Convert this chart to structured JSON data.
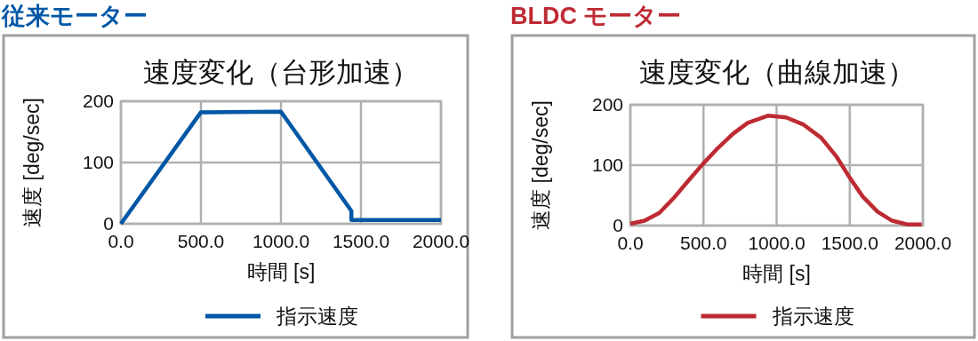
{
  "chart_data": [
    {
      "type": "line",
      "title": "従来モーター",
      "subtitle": "速度変化（台形加速）",
      "xlabel": "時間 [s]",
      "ylabel": "速度 [deg/sec]",
      "xlim": [
        0,
        2000
      ],
      "ylim": [
        0,
        200
      ],
      "xticks": [
        {
          "value": 0,
          "label": "0.0"
        },
        {
          "value": 500,
          "label": "500.0"
        },
        {
          "value": 1000,
          "label": "1000.0"
        },
        {
          "value": 1500,
          "label": "1500.0"
        },
        {
          "value": 2000,
          "label": "2000.0"
        }
      ],
      "yticks": [
        0,
        100,
        200
      ],
      "grid": true,
      "legend": "bottom",
      "series": [
        {
          "name": "指示速度",
          "color": "#0057a6",
          "x": [
            0,
            500,
            1000,
            1440,
            1440,
            2000
          ],
          "values": [
            0,
            182,
            183,
            21,
            6,
            6
          ]
        }
      ]
    },
    {
      "type": "line",
      "title": "BLDC モーター",
      "subtitle": "速度変化（曲線加速）",
      "xlabel": "時間 [s]",
      "ylabel": "速度 [deg/sec]",
      "xlim": [
        0,
        2000
      ],
      "ylim": [
        0,
        200
      ],
      "xticks": [
        {
          "value": 0,
          "label": "0.0"
        },
        {
          "value": 500,
          "label": "500.0"
        },
        {
          "value": 1000,
          "label": "1000.0"
        },
        {
          "value": 1500,
          "label": "1500.0"
        },
        {
          "value": 2000,
          "label": "2000.0"
        }
      ],
      "yticks": [
        0,
        100,
        200
      ],
      "grid": true,
      "legend": "bottom",
      "series": [
        {
          "name": "指示速度",
          "color": "#be2a33",
          "x": [
            0,
            97,
            198,
            298,
            399,
            496,
            601,
            702,
            802,
            944,
            1065,
            1185,
            1306,
            1407,
            1498,
            1589,
            1690,
            1790,
            1891,
            1992
          ],
          "values": [
            3,
            8,
            21,
            46,
            75,
            102,
            129,
            152,
            170,
            182,
            179,
            167,
            145,
            115,
            80,
            48,
            23,
            8,
            2,
            2
          ]
        }
      ]
    }
  ]
}
